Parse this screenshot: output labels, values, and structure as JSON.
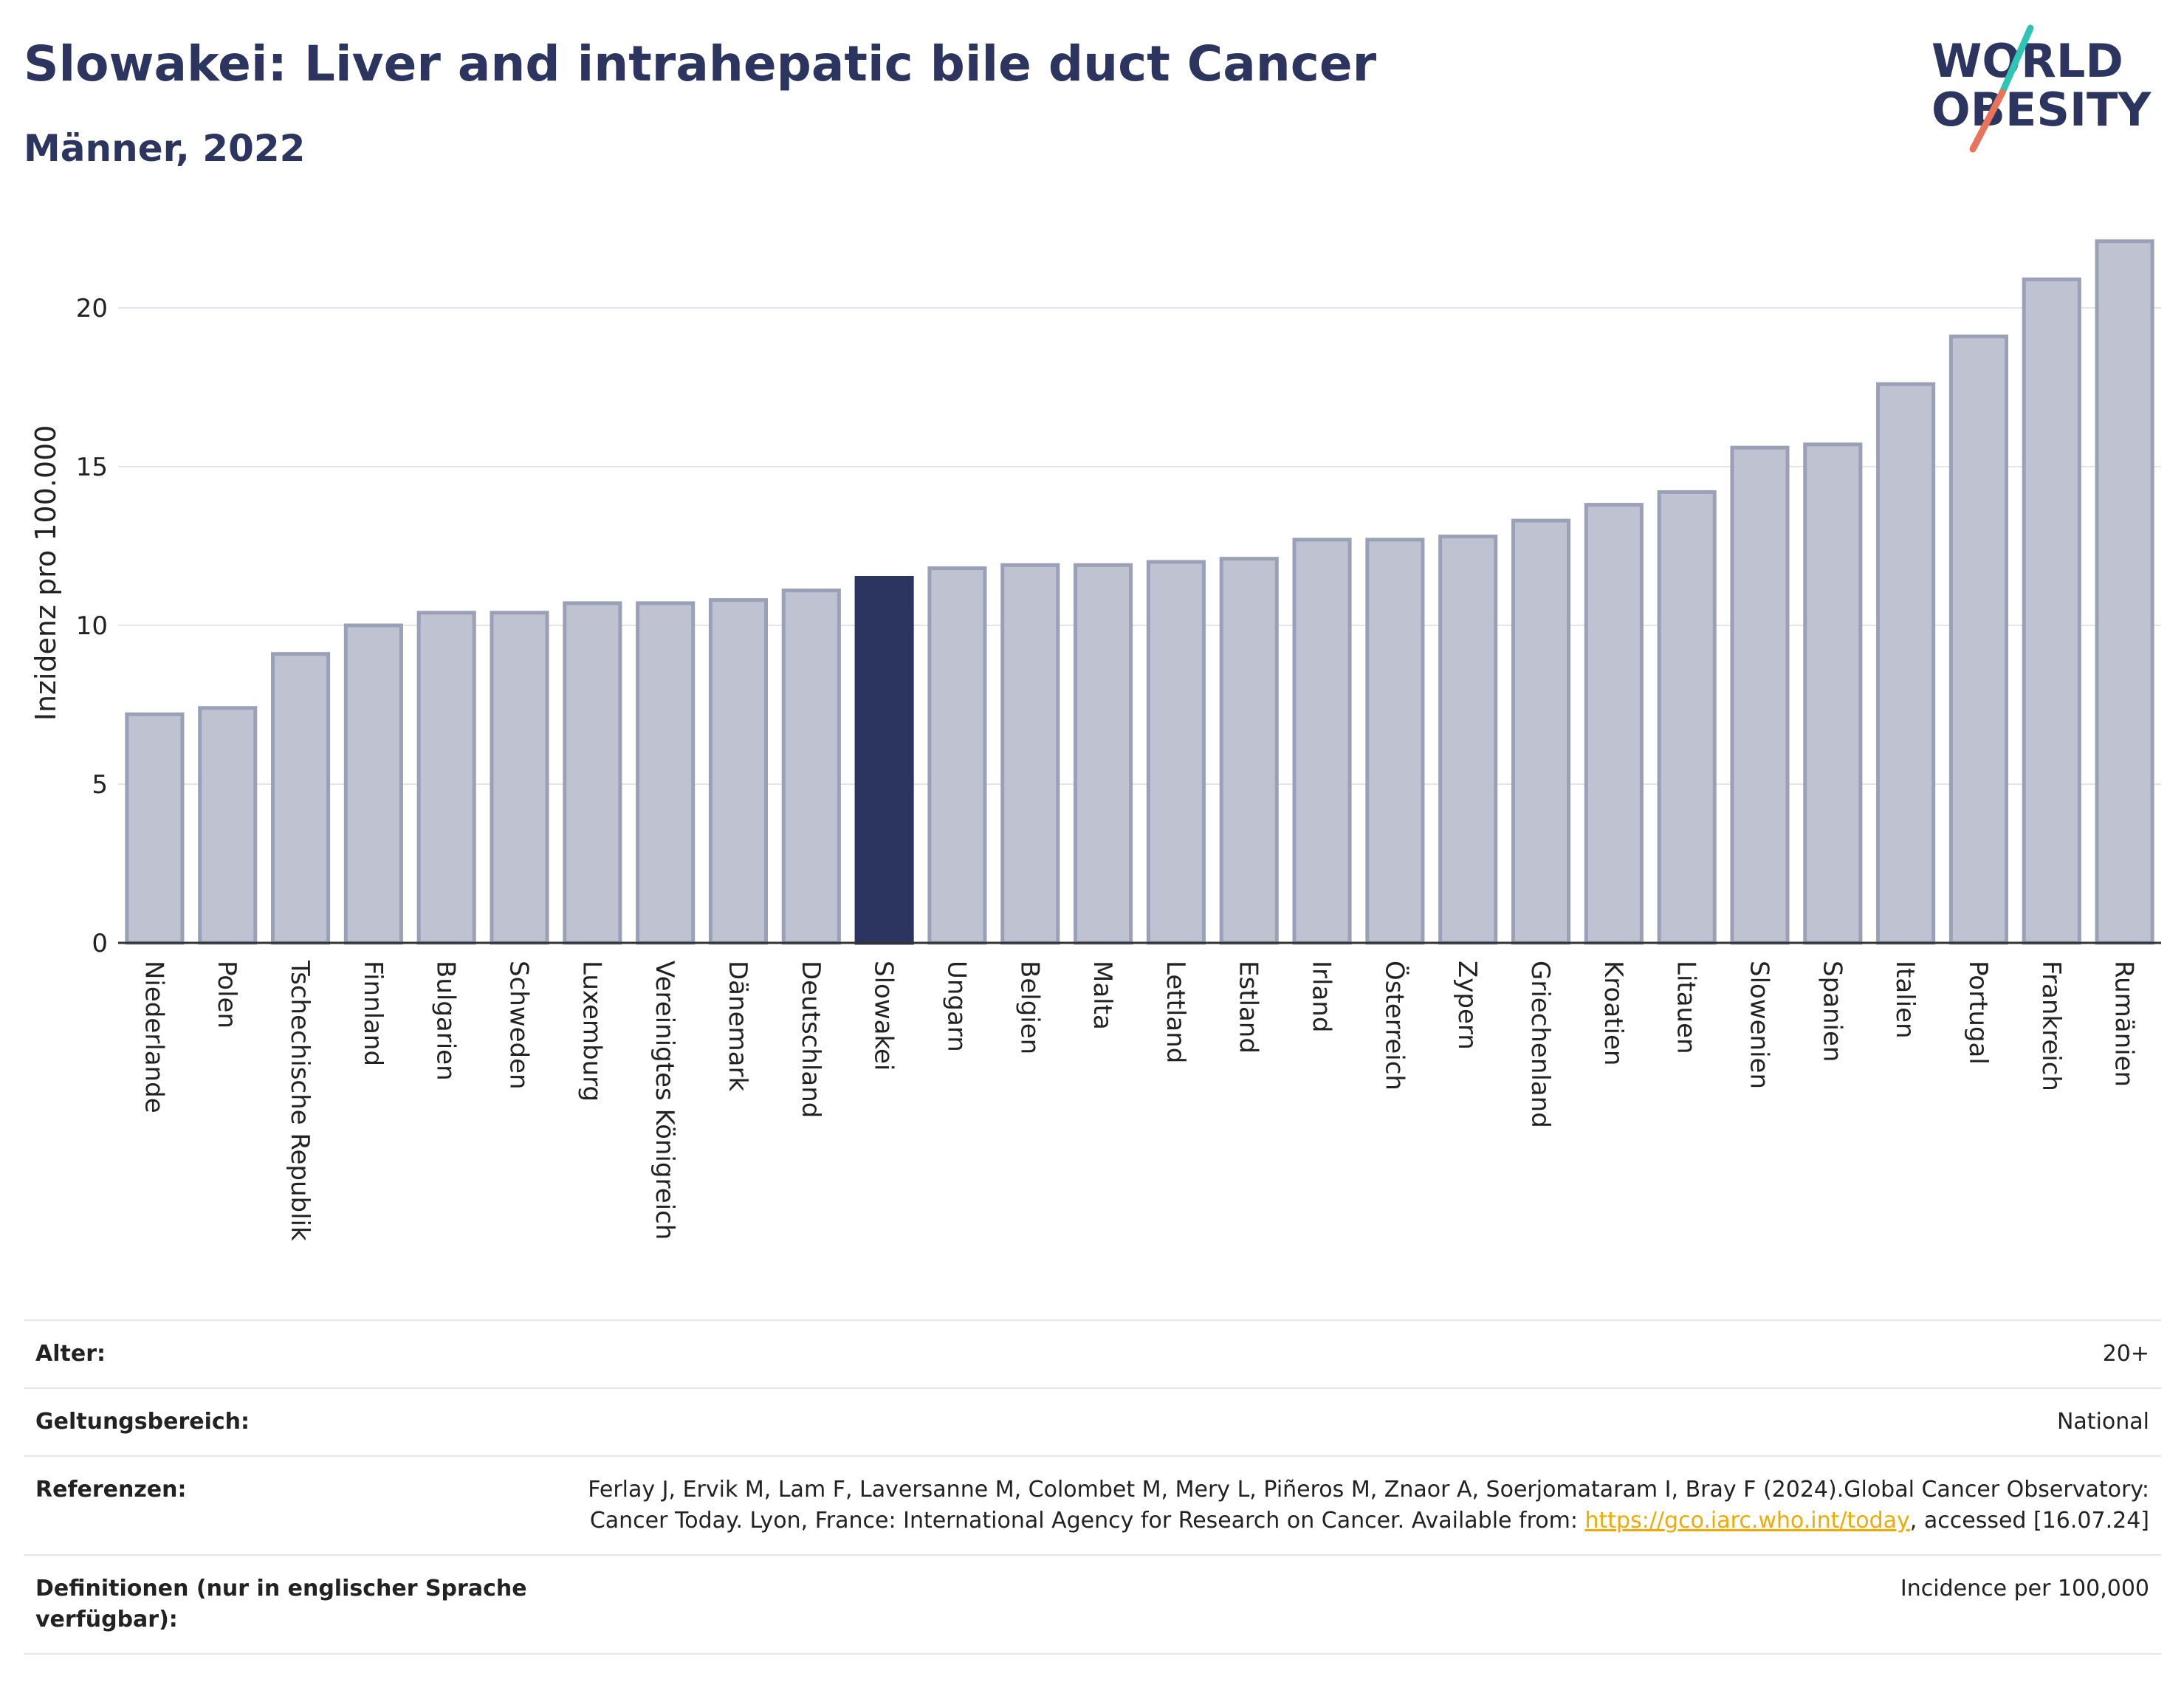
{
  "header": {
    "title": "Slowakei: Liver and intrahepatic bile duct Cancer",
    "subtitle": "Männer, 2022"
  },
  "logo": {
    "line1": "WORLD",
    "line2": "OBESITY",
    "colors": {
      "text": "#2b3560",
      "slash_top": "#2ec4b6",
      "slash_bottom": "#e8735a"
    }
  },
  "colors": {
    "bar": "#bfc2d0",
    "bar_stroke": "#9aa0b8",
    "highlight": "#2b3560",
    "grid": "#e4e4ea",
    "axis": "#333333"
  },
  "chart_data": {
    "type": "bar",
    "title": "",
    "xlabel": "",
    "ylabel": "Inzidenz pro 100.000",
    "ylim": [
      0,
      22.5
    ],
    "yticks": [
      0,
      5,
      10,
      15,
      20
    ],
    "grid": true,
    "highlight": "Slowakei",
    "categories": [
      "Niederlande",
      "Polen",
      "Tschechische Republik",
      "Finnland",
      "Bulgarien",
      "Schweden",
      "Luxemburg",
      "Vereinigtes Königreich",
      "Dänemark",
      "Deutschland",
      "Slowakei",
      "Ungarn",
      "Belgien",
      "Malta",
      "Lettland",
      "Estland",
      "Irland",
      "Österreich",
      "Zypern",
      "Griechenland",
      "Kroatien",
      "Litauen",
      "Slowenien",
      "Spanien",
      "Italien",
      "Portugal",
      "Frankreich",
      "Rumänien"
    ],
    "values": [
      7.2,
      7.4,
      9.1,
      10.0,
      10.4,
      10.4,
      10.7,
      10.7,
      10.8,
      11.1,
      11.5,
      11.8,
      11.9,
      11.9,
      12.0,
      12.1,
      12.7,
      12.7,
      12.8,
      13.3,
      13.8,
      14.2,
      15.6,
      15.7,
      17.6,
      19.1,
      20.9,
      22.1
    ]
  },
  "meta": {
    "age_label": "Alter:",
    "age_value": "20+",
    "scope_label": "Geltungsbereich:",
    "scope_value": "National",
    "references_label": "Referenzen:",
    "references_text_1": "Ferlay J, Ervik M, Lam F, Laversanne M, Colombet M, Mery L, Piñeros M, Znaor A, Soerjomataram I, Bray F (2024).Global Cancer Observatory: Cancer Today. Lyon, France: International Agency for Research on Cancer. Available from: ",
    "references_link": "https://gco.iarc.who.int/today",
    "references_text_2": ", accessed [16.07.24]",
    "definitions_label": "Definitionen (nur in englischer Sprache verfügbar):",
    "definitions_value": "Incidence per 100,000"
  }
}
